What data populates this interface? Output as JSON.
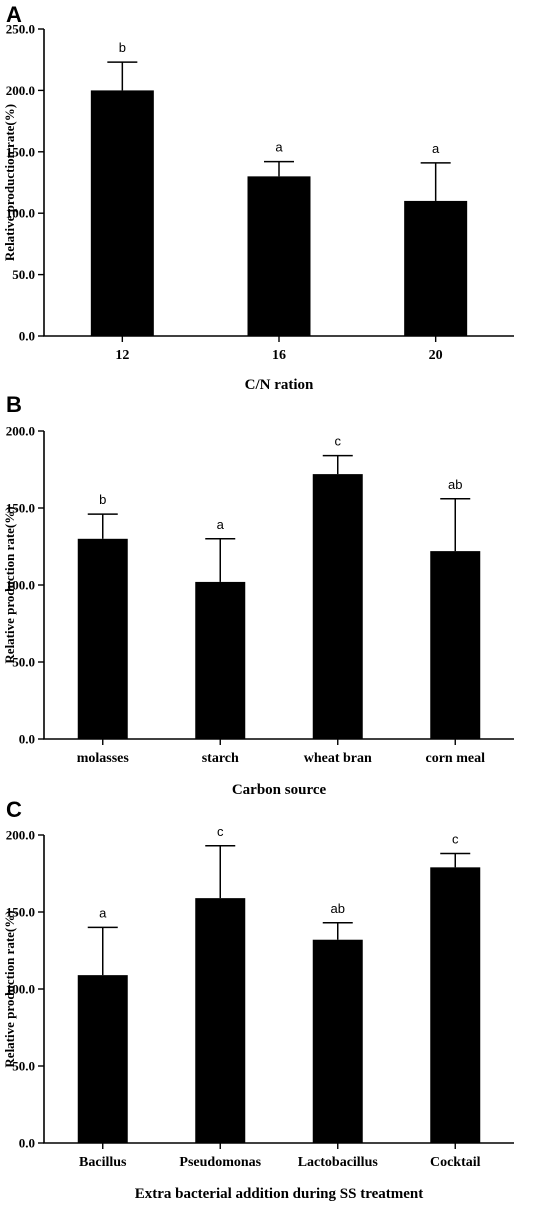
{
  "chart_data": [
    {
      "panel": "A",
      "type": "bar",
      "categories": [
        "12",
        "16",
        "20"
      ],
      "values": [
        200,
        130,
        110
      ],
      "errors": [
        23,
        12,
        31
      ],
      "significance": [
        "b",
        "a",
        "a"
      ],
      "xlabel": "C/N ration",
      "ylabel": "Relative production rate(%)",
      "ylim": [
        0,
        250
      ],
      "yticks": [
        "0.0",
        "50.0",
        "100.0",
        "150.0",
        "200.0",
        "250.0"
      ],
      "grid": false,
      "bar_color": "#000000"
    },
    {
      "panel": "B",
      "type": "bar",
      "categories": [
        "molasses",
        "starch",
        "wheat bran",
        "corn meal"
      ],
      "values": [
        130,
        102,
        172,
        122
      ],
      "errors": [
        16,
        28,
        12,
        34
      ],
      "significance": [
        "b",
        "a",
        "c",
        "ab"
      ],
      "xlabel": "Carbon source",
      "ylabel": "Relative production rate(%)",
      "ylim": [
        0,
        200
      ],
      "yticks": [
        "0.0",
        "50.0",
        "100.0",
        "150.0",
        "200.0"
      ],
      "grid": false,
      "bar_color": "#000000"
    },
    {
      "panel": "C",
      "type": "bar",
      "categories": [
        "Bacillus",
        "Pseudomonas",
        "Lactobacillus",
        "Cocktail"
      ],
      "values": [
        109,
        159,
        132,
        179
      ],
      "errors": [
        31,
        34,
        11,
        9
      ],
      "significance": [
        "a",
        "c",
        "ab",
        "c"
      ],
      "xlabel": "Extra bacterial addition during SS treatment",
      "ylabel": "Relative production rate(%)",
      "ylim": [
        0,
        200
      ],
      "yticks": [
        "0.0",
        "50.0",
        "100.0",
        "150.0",
        "200.0"
      ],
      "grid": false,
      "bar_color": "#000000"
    }
  ]
}
